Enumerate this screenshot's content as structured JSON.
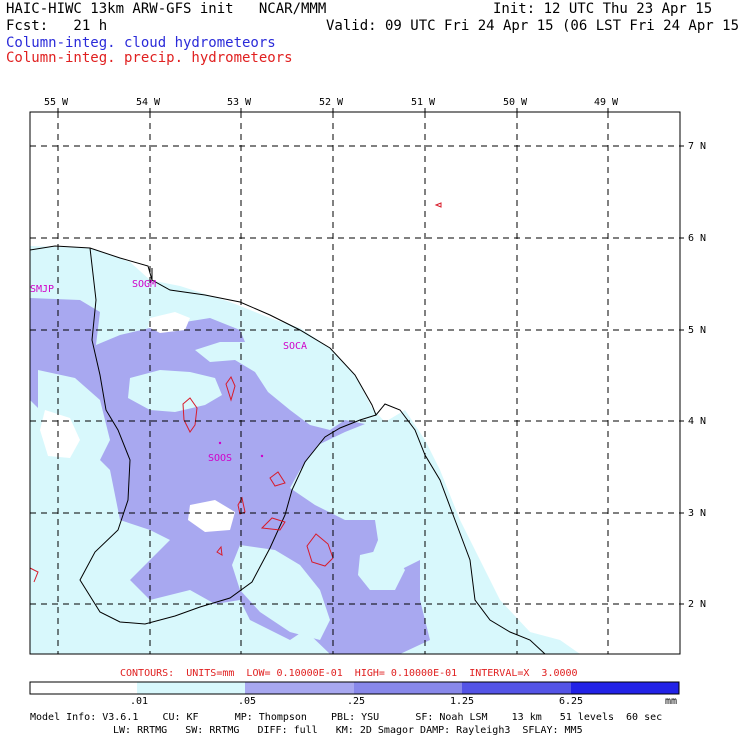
{
  "header": {
    "title_left": "HAIC-HIWC 13km ARW-GFS init   NCAR/MMM",
    "init": "Init: 12 UTC Thu 23 Apr 15",
    "fcst": "Fcst:   21 h",
    "valid": "Valid: 09 UTC Fri 24 Apr 15 (06 LST Fri 24 Apr 15)",
    "field_cloud": "Column-integ. cloud hydrometeors",
    "field_precip": "Column-integ. precip. hydrometeors"
  },
  "colors": {
    "cloud_text": "#2b2bd9",
    "precip_text": "#e02020",
    "contour": "#d81b2a",
    "station": "#d000c8",
    "shade_1": "#d8f8fc",
    "shade_2": "#a8a8f0",
    "shade_3": "#8888ea",
    "shade_4": "#5454e6",
    "shade_5": "#2222e6",
    "shade_6": "#0000e0"
  },
  "axes": {
    "lon_labels": [
      "55 W",
      "54 W",
      "53 W",
      "52 W",
      "51 W",
      "50 W",
      "49 W"
    ],
    "lat_labels": [
      "7 N",
      "6 N",
      "5 N",
      "4 N",
      "3 N",
      "2 N"
    ]
  },
  "stations": [
    "SMJP",
    "SOGM",
    "SOCA",
    "SOOS"
  ],
  "contour_info": "CONTOURS:  UNITS=mm  LOW= 0.10000E-01  HIGH= 0.10000E-01  INTERVAL=X  3.0000",
  "colorbar": {
    "labels": [
      ".01",
      ".05",
      ".25",
      "1.25",
      "6.25"
    ],
    "unit": "mm"
  },
  "model_info": {
    "line1": "Model Info: V3.6.1    CU: KF      MP: Thompson    PBL: YSU      SF: Noah LSM    13 km   51 levels  60 sec",
    "line2": "LW: RRTMG   SW: RRTMG   DIFF: full   KM: 2D Smagor DAMP: Rayleigh3  SFLAY: MM5"
  }
}
